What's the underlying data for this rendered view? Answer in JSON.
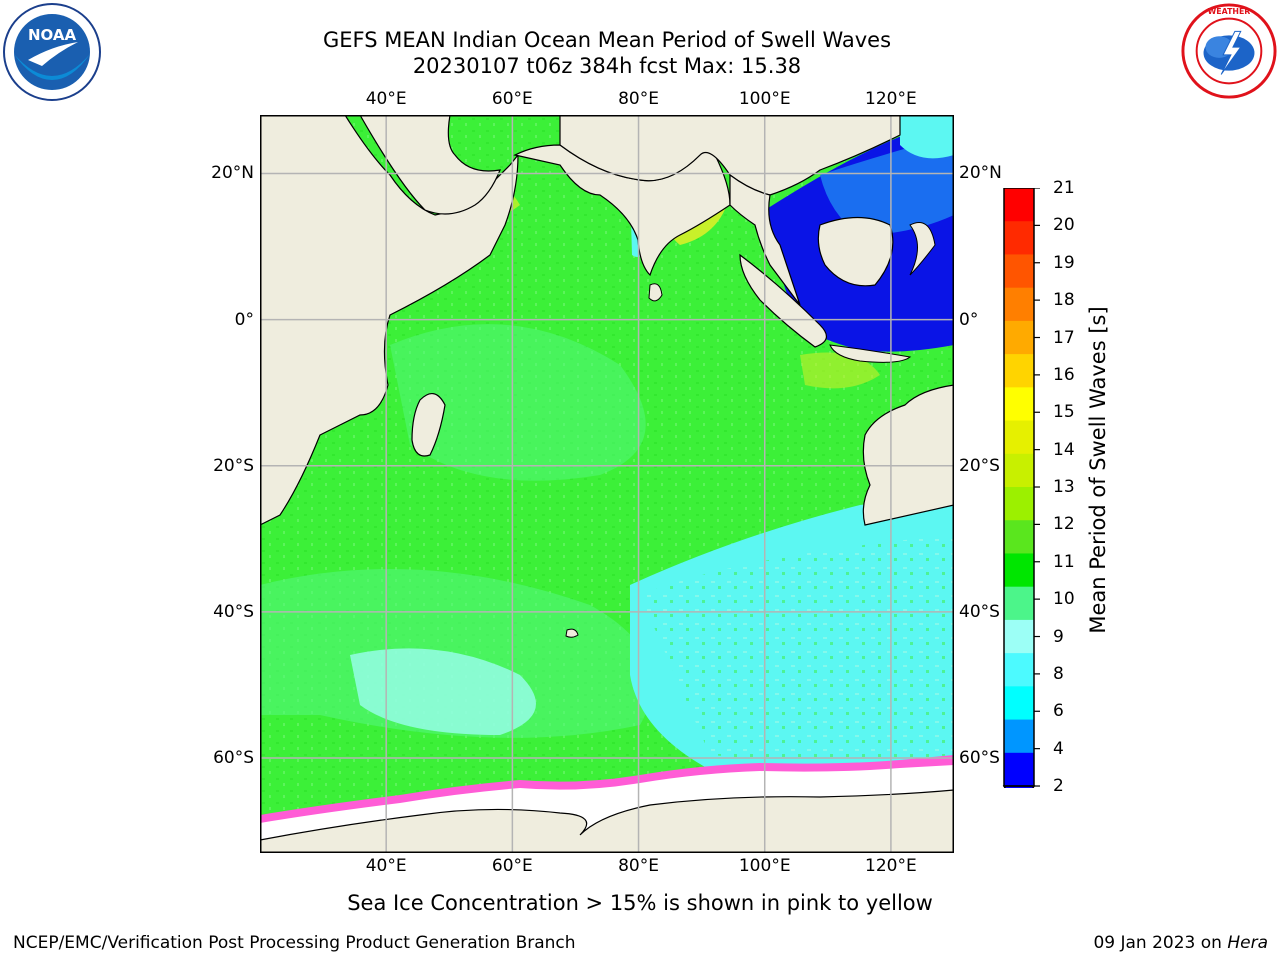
{
  "title": {
    "line1": "GEFS MEAN Indian Ocean Mean Period of Swell Waves",
    "line2": "20230107 t06z 384h fcst   Max: 15.38"
  },
  "logos": {
    "left": {
      "name": "noaa-logo",
      "text": "NOAA",
      "ring_text": "NATIONAL OCEANIC AND ATMOSPHERIC ADMINISTRATION · U.S. DEPARTMENT OF COMMERCE"
    },
    "right": {
      "name": "nws-logo",
      "ring_text": "NATIONAL WEATHER SERVICE"
    }
  },
  "map": {
    "lon_ticks": [
      "40°E",
      "60°E",
      "80°E",
      "100°E",
      "120°E"
    ],
    "lat_ticks": [
      "20°N",
      "0°",
      "20°S",
      "40°S",
      "60°S"
    ],
    "lon_values": [
      40,
      60,
      80,
      100,
      120
    ],
    "lat_values": [
      20,
      0,
      -20,
      -40,
      -60
    ],
    "lon_range": [
      20,
      130
    ],
    "lat_range": [
      -73,
      28
    ],
    "gridlines": true,
    "colors": {
      "land": "#efedde",
      "ocean_main": "#3cf038",
      "ocean_light": "#52f77a",
      "ocean_cyan": "#5cf7f2",
      "ocean_lightcyan": "#9ffff7",
      "ocean_yellow": "#c8f02a",
      "blue_dark": "#0a14e6",
      "blue_mid": "#1a6ef0",
      "ice": "#ffffff",
      "ice_edge": "#ff5cd6",
      "grid": "#b4b4b4"
    }
  },
  "colorbar": {
    "title": "Mean Period of Swell Waves [s]",
    "labels": [
      "21",
      "20",
      "19",
      "18",
      "17",
      "16",
      "15",
      "14",
      "13",
      "12",
      "11",
      "10",
      "9",
      "8",
      "6",
      "4",
      "2"
    ],
    "colors": [
      "#ff0000",
      "#ff2a00",
      "#ff5500",
      "#ff7f00",
      "#ffaa00",
      "#ffd400",
      "#ffff00",
      "#e6f000",
      "#c8f000",
      "#9cf000",
      "#5ae61e",
      "#00e600",
      "#4cf58a",
      "#9cfff6",
      "#4cfaff",
      "#00ffff",
      "#0096ff",
      "#0000ff"
    ],
    "extend_color": "#0000ff"
  },
  "ice_note": "Sea Ice Concentration > 15% is shown in pink to yellow",
  "footer": {
    "left": "NCEP/EMC/Verification Post Processing Product Generation Branch",
    "right_date": "09 Jan 2023 on",
    "right_host": "Hera"
  }
}
